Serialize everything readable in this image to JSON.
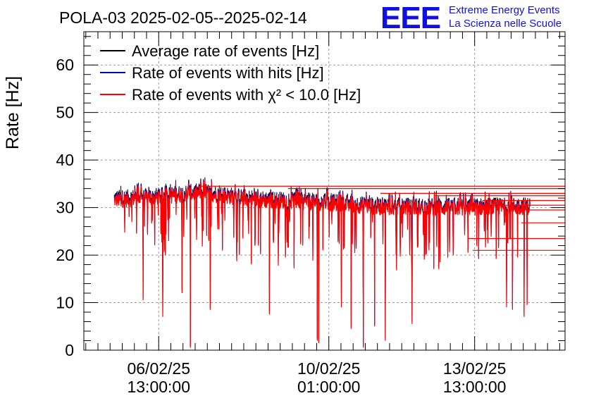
{
  "chart_data": {
    "type": "line",
    "title": "POLA-03 2025-02-05--2025-02-14",
    "ylabel": "Rate [Hz]",
    "xlabel": "",
    "ylim": [
      0,
      67
    ],
    "yticks": [
      0,
      10,
      20,
      30,
      40,
      50,
      60
    ],
    "xlim_days": [
      0,
      9.9
    ],
    "xticks": [
      {
        "pos_days": 1.54,
        "line1": "06/02/25",
        "line2": "13:00:00"
      },
      {
        "pos_days": 5.04,
        "line1": "10/02/25",
        "line2": "01:00:00"
      },
      {
        "pos_days": 8.04,
        "line1": "13/02/25",
        "line2": "13:00:00"
      }
    ],
    "grid": true,
    "legend_position": "top-left",
    "series": [
      {
        "name": "Average rate of events [Hz]",
        "color": "#000000",
        "typical": 31.5
      },
      {
        "name": "Rate of events with hits [Hz]",
        "color": "#0000cc",
        "typical": 31.5
      },
      {
        "name": "Rate of events with χ² < 10.0 [Hz]",
        "color": "#ff0000",
        "typical": 31.0
      }
    ],
    "data_start_days": 0.62,
    "data_end_days": 9.18,
    "baseline": [
      {
        "t": 0.62,
        "v": 31.5
      },
      {
        "t": 1.5,
        "v": 32.0
      },
      {
        "t": 2.4,
        "v": 33.0
      },
      {
        "t": 3.5,
        "v": 31.5
      },
      {
        "t": 5.0,
        "v": 30.8
      },
      {
        "t": 6.0,
        "v": 30.0
      },
      {
        "t": 7.5,
        "v": 29.8
      },
      {
        "t": 9.18,
        "v": 30.0
      }
    ],
    "deep_dips": [
      {
        "t": 0.93,
        "v": 28
      },
      {
        "t": 1.22,
        "v": 10.5
      },
      {
        "t": 1.62,
        "v": 7
      },
      {
        "t": 1.68,
        "v": 20
      },
      {
        "t": 2.02,
        "v": 12
      },
      {
        "t": 2.19,
        "v": 0.5
      },
      {
        "t": 2.6,
        "v": 8.5
      },
      {
        "t": 3.2,
        "v": 20
      },
      {
        "t": 3.82,
        "v": 7.5
      },
      {
        "t": 4.15,
        "v": 19.5
      },
      {
        "t": 4.5,
        "v": 22
      },
      {
        "t": 4.8,
        "v": 2
      },
      {
        "t": 4.83,
        "v": 1.5
      },
      {
        "t": 4.92,
        "v": 21
      },
      {
        "t": 5.3,
        "v": 9
      },
      {
        "t": 5.5,
        "v": 4.5
      },
      {
        "t": 5.75,
        "v": 0.5
      },
      {
        "t": 5.98,
        "v": 5
      },
      {
        "t": 6.2,
        "v": 2
      },
      {
        "t": 6.42,
        "v": 20
      },
      {
        "t": 6.75,
        "v": 5.5
      },
      {
        "t": 7.1,
        "v": 21
      },
      {
        "t": 7.3,
        "v": 17
      },
      {
        "t": 7.6,
        "v": 20
      },
      {
        "t": 8.7,
        "v": 9
      },
      {
        "t": 8.82,
        "v": 8.5
      },
      {
        "t": 9.06,
        "v": 7
      },
      {
        "t": 9.12,
        "v": 9.5
      }
    ],
    "extension_lines": [
      {
        "from_days": 2.35,
        "v": 34.5
      },
      {
        "from_days": 4.2,
        "v": 34.0
      },
      {
        "from_days": 6.1,
        "v": 33.0
      },
      {
        "from_days": 7.2,
        "v": 32.5
      },
      {
        "from_days": 8.2,
        "v": 31.5
      },
      {
        "from_days": 8.6,
        "v": 30.5
      },
      {
        "from_days": 8.9,
        "v": 29.5
      },
      {
        "from_days": 9.0,
        "v": 26.8
      },
      {
        "from_days": 7.9,
        "v": 23.5
      },
      {
        "from_days": 8.0,
        "v": 21.0
      }
    ]
  },
  "logo": {
    "letters": "EEE",
    "line1": "Extreme Energy Events",
    "line2": "La Scienza nelle Scuole",
    "color": "#1010e0"
  }
}
